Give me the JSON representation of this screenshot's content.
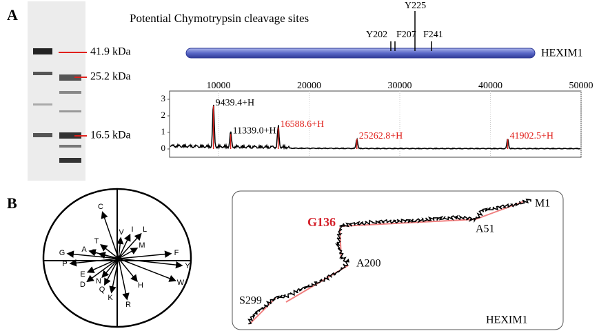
{
  "panel_a": {
    "letter": "A",
    "gel": {
      "markers": [
        "41.9 kDa",
        "25.2 kDa",
        "16.5 kDa"
      ]
    },
    "cleavage": {
      "title": "Potential Chymotrypsin cleavage sites",
      "protein": "HEXIM1",
      "sites": [
        "Y202",
        "F207",
        "Y225",
        "F241"
      ]
    },
    "spectrum": {
      "xlim": [
        4600,
        50000
      ],
      "xticks": [
        10000,
        20000,
        30000,
        40000,
        50000
      ],
      "ylim": [
        -0.5,
        3.5
      ],
      "yticks": [
        0,
        1,
        2,
        3
      ],
      "peaks": {
        "x": [
          9439.4,
          11339.0,
          16588.6,
          25262.8,
          41902.5
        ],
        "value_labels": [
          "9439.4+H",
          "11339.0+H",
          "16588.6+H",
          "25262.8+H",
          "41902.5+H"
        ],
        "heights": [
          2.6,
          0.9,
          1.3,
          0.6,
          0.6
        ],
        "label_colors": [
          "#000000",
          "#000000",
          "#e0201b",
          "#e0201b",
          "#e0201b"
        ]
      }
    }
  },
  "panel_b": {
    "letter": "B",
    "vectors": [
      "C",
      "V",
      "I",
      "L",
      "M",
      "F",
      "Y",
      "W",
      "H",
      "R",
      "K",
      "Q",
      "N",
      "D",
      "E",
      "P",
      "G",
      "A",
      "S",
      "T"
    ],
    "trace": {
      "labels": [
        "M1",
        "A51",
        "G136",
        "A200",
        "S299"
      ],
      "protein": "HEXIM1"
    }
  }
}
